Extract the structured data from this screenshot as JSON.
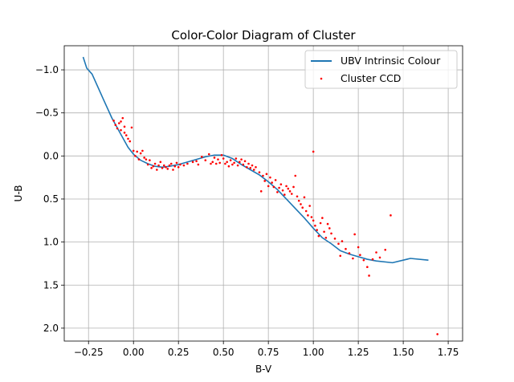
{
  "chart_data": {
    "type": "scatter",
    "title": "Color-Color Diagram of Cluster",
    "xlabel": "B-V",
    "ylabel": "U-B",
    "xlim": [
      -0.385,
      1.83
    ],
    "ylim": [
      2.15,
      -1.28
    ],
    "y_inverted": true,
    "grid": true,
    "legend_position": "top-right",
    "x_ticks": [
      -0.25,
      0.0,
      0.25,
      0.5,
      0.75,
      1.0,
      1.25,
      1.5,
      1.75
    ],
    "x_tick_labels": [
      "−0.25",
      "0.00",
      "0.25",
      "0.50",
      "0.75",
      "1.00",
      "1.25",
      "1.50",
      "1.75"
    ],
    "y_ticks": [
      -1.0,
      -0.5,
      0.0,
      0.5,
      1.0,
      1.5,
      2.0
    ],
    "y_tick_labels": [
      "−1.0",
      "−0.5",
      "0.0",
      "0.5",
      "1.0",
      "1.5",
      "2.0"
    ],
    "series": [
      {
        "name": "UBV Intrinsic Colour",
        "kind": "line",
        "color": "#1f77b4",
        "points": [
          [
            -0.28,
            -1.15
          ],
          [
            -0.26,
            -1.02
          ],
          [
            -0.23,
            -0.95
          ],
          [
            -0.17,
            -0.67
          ],
          [
            -0.12,
            -0.44
          ],
          [
            -0.07,
            -0.25
          ],
          [
            -0.03,
            -0.1
          ],
          [
            0.0,
            -0.02
          ],
          [
            0.04,
            0.05
          ],
          [
            0.08,
            0.09
          ],
          [
            0.12,
            0.12
          ],
          [
            0.16,
            0.13
          ],
          [
            0.2,
            0.12
          ],
          [
            0.25,
            0.1
          ],
          [
            0.3,
            0.07
          ],
          [
            0.35,
            0.04
          ],
          [
            0.4,
            0.01
          ],
          [
            0.45,
            -0.01
          ],
          [
            0.5,
            -0.01
          ],
          [
            0.55,
            0.03
          ],
          [
            0.6,
            0.1
          ],
          [
            0.65,
            0.16
          ],
          [
            0.7,
            0.22
          ],
          [
            0.75,
            0.3
          ],
          [
            0.8,
            0.39
          ],
          [
            0.85,
            0.5
          ],
          [
            0.9,
            0.61
          ],
          [
            0.95,
            0.72
          ],
          [
            1.0,
            0.84
          ],
          [
            1.05,
            0.95
          ],
          [
            1.1,
            1.02
          ],
          [
            1.15,
            1.1
          ],
          [
            1.2,
            1.14
          ],
          [
            1.25,
            1.17
          ],
          [
            1.3,
            1.2
          ],
          [
            1.35,
            1.22
          ],
          [
            1.44,
            1.24
          ],
          [
            1.54,
            1.19
          ],
          [
            1.64,
            1.21
          ]
        ]
      },
      {
        "name": "Cluster CCD",
        "kind": "scatter",
        "color": "#ff0000",
        "points": [
          [
            -0.11,
            -0.41
          ],
          [
            -0.1,
            -0.36
          ],
          [
            -0.09,
            -0.32
          ],
          [
            -0.08,
            -0.38
          ],
          [
            -0.07,
            -0.4
          ],
          [
            -0.07,
            -0.3
          ],
          [
            -0.06,
            -0.44
          ],
          [
            -0.05,
            -0.34
          ],
          [
            -0.05,
            -0.27
          ],
          [
            -0.04,
            -0.24
          ],
          [
            -0.03,
            -0.2
          ],
          [
            -0.02,
            -0.17
          ],
          [
            -0.01,
            -0.33
          ],
          [
            0.0,
            -0.06
          ],
          [
            0.01,
            0.0
          ],
          [
            0.02,
            -0.05
          ],
          [
            0.03,
            0.04
          ],
          [
            0.04,
            -0.03
          ],
          [
            0.05,
            -0.06
          ],
          [
            0.06,
            0.02
          ],
          [
            0.07,
            0.04
          ],
          [
            0.08,
            0.1
          ],
          [
            0.09,
            0.05
          ],
          [
            0.1,
            0.14
          ],
          [
            0.11,
            0.12
          ],
          [
            0.12,
            0.09
          ],
          [
            0.13,
            0.16
          ],
          [
            0.14,
            0.11
          ],
          [
            0.15,
            0.07
          ],
          [
            0.16,
            0.14
          ],
          [
            0.17,
            0.11
          ],
          [
            0.18,
            0.13
          ],
          [
            0.19,
            0.15
          ],
          [
            0.2,
            0.11
          ],
          [
            0.21,
            0.09
          ],
          [
            0.22,
            0.16
          ],
          [
            0.23,
            0.12
          ],
          [
            0.24,
            0.08
          ],
          [
            0.25,
            0.13
          ],
          [
            0.26,
            0.1
          ],
          [
            0.28,
            0.11
          ],
          [
            0.3,
            0.09
          ],
          [
            0.33,
            0.07
          ],
          [
            0.35,
            0.06
          ],
          [
            0.36,
            0.1
          ],
          [
            0.38,
            0.01
          ],
          [
            0.4,
            0.05
          ],
          [
            0.42,
            -0.02
          ],
          [
            0.43,
            0.09
          ],
          [
            0.44,
            0.07
          ],
          [
            0.45,
            0.02
          ],
          [
            0.46,
            0.09
          ],
          [
            0.47,
            0.04
          ],
          [
            0.48,
            0.08
          ],
          [
            0.49,
            -0.01
          ],
          [
            0.5,
            0.03
          ],
          [
            0.51,
            0.09
          ],
          [
            0.52,
            0.07
          ],
          [
            0.53,
            0.12
          ],
          [
            0.54,
            0.05
          ],
          [
            0.55,
            0.1
          ],
          [
            0.56,
            0.08
          ],
          [
            0.57,
            0.03
          ],
          [
            0.58,
            0.11
          ],
          [
            0.59,
            0.07
          ],
          [
            0.6,
            0.04
          ],
          [
            0.61,
            0.1
          ],
          [
            0.62,
            0.06
          ],
          [
            0.63,
            0.13
          ],
          [
            0.64,
            0.09
          ],
          [
            0.65,
            0.14
          ],
          [
            0.66,
            0.11
          ],
          [
            0.67,
            0.16
          ],
          [
            0.68,
            0.13
          ],
          [
            0.7,
            0.19
          ],
          [
            0.71,
            0.41
          ],
          [
            0.72,
            0.23
          ],
          [
            0.73,
            0.29
          ],
          [
            0.74,
            0.21
          ],
          [
            0.75,
            0.35
          ],
          [
            0.76,
            0.25
          ],
          [
            0.77,
            0.31
          ],
          [
            0.78,
            0.36
          ],
          [
            0.79,
            0.28
          ],
          [
            0.8,
            0.42
          ],
          [
            0.81,
            0.37
          ],
          [
            0.82,
            0.33
          ],
          [
            0.83,
            0.4
          ],
          [
            0.84,
            0.45
          ],
          [
            0.85,
            0.35
          ],
          [
            0.86,
            0.38
          ],
          [
            0.87,
            0.41
          ],
          [
            0.88,
            0.44
          ],
          [
            0.89,
            0.36
          ],
          [
            0.9,
            0.23
          ],
          [
            0.91,
            0.47
          ],
          [
            0.92,
            0.52
          ],
          [
            0.93,
            0.56
          ],
          [
            0.94,
            0.6
          ],
          [
            0.95,
            0.48
          ],
          [
            0.96,
            0.64
          ],
          [
            0.97,
            0.69
          ],
          [
            0.98,
            0.58
          ],
          [
            0.99,
            0.71
          ],
          [
            1.0,
            0.75
          ],
          [
            1.01,
            0.81
          ],
          [
            1.02,
            0.86
          ],
          [
            1.03,
            0.93
          ],
          [
            1.04,
            0.78
          ],
          [
            1.05,
            0.72
          ],
          [
            1.06,
            0.88
          ],
          [
            1.07,
            0.95
          ],
          [
            1.08,
            0.79
          ],
          [
            1.09,
            0.84
          ],
          [
            1.1,
            0.9
          ],
          [
            1.12,
            0.96
          ],
          [
            1.14,
            1.02
          ],
          [
            1.15,
            1.16
          ],
          [
            1.16,
            0.99
          ],
          [
            1.18,
            1.08
          ],
          [
            1.2,
            1.13
          ],
          [
            1.22,
            1.19
          ],
          [
            1.23,
            0.91
          ],
          [
            1.25,
            1.06
          ],
          [
            1.26,
            1.15
          ],
          [
            1.28,
            1.21
          ],
          [
            1.3,
            1.29
          ],
          [
            1.31,
            1.39
          ],
          [
            1.33,
            1.2
          ],
          [
            1.35,
            1.12
          ],
          [
            1.37,
            1.18
          ],
          [
            1.4,
            1.09
          ],
          [
            1.43,
            0.69
          ],
          [
            1.0,
            -0.05
          ],
          [
            1.69,
            2.07
          ]
        ]
      }
    ]
  }
}
